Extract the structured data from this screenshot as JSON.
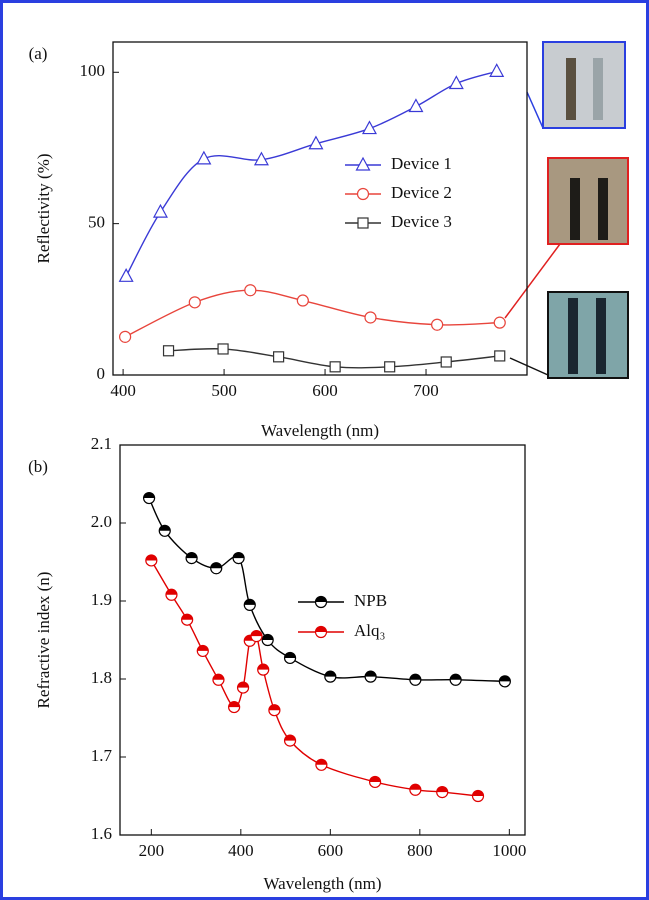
{
  "chart_data": [
    {
      "type": "line",
      "annotation": "(a)",
      "x_label": "Wavelength (nm)",
      "y_label": "Reflectivity (%)",
      "xlim": [
        390,
        800
      ],
      "xticks": [
        400,
        500,
        600,
        700
      ],
      "ylim": [
        0,
        110
      ],
      "yticks": [
        0,
        50,
        100
      ],
      "grid": false,
      "series": [
        {
          "name": "Device 1",
          "color": "#3a3ad6",
          "marker": "triangle",
          "x": [
            403,
            437,
            480,
            537,
            591,
            644,
            690,
            730,
            770
          ],
          "values": [
            32.6,
            53.8,
            71.4,
            71.1,
            76.4,
            81.4,
            88.7,
            96.3,
            100.3
          ]
        },
        {
          "name": "Device 2",
          "color": "#e8453c",
          "marker": "circle",
          "x": [
            402,
            471,
            526,
            578,
            645,
            711,
            773
          ],
          "values": [
            12.6,
            24,
            28,
            24.6,
            19,
            16.6,
            17.3
          ]
        },
        {
          "name": "Device 3",
          "color": "#333333",
          "marker": "square",
          "x": [
            445,
            499,
            554,
            610,
            664,
            720,
            773
          ],
          "values": [
            8,
            8.6,
            6,
            2.7,
            2.7,
            4.3,
            6.3
          ]
        }
      ]
    },
    {
      "type": "line",
      "annotation": "(b)",
      "x_label": "Wavelength (nm)",
      "y_label": "Refractive index (n)",
      "xlim": [
        130,
        1035
      ],
      "xticks": [
        200,
        400,
        600,
        800,
        1000
      ],
      "ylim": [
        1.6,
        2.1
      ],
      "yticks": [
        {
          "value": 1.6,
          "label": "1.6"
        },
        {
          "value": 1.7,
          "label": "1.7"
        },
        {
          "value": 1.8,
          "label": "1.8"
        },
        {
          "value": 1.9,
          "label": "1.9"
        },
        {
          "value": 2.0,
          "label": "2.0"
        },
        {
          "value": 2.1,
          "label": "2.1"
        }
      ],
      "grid": false,
      "series": [
        {
          "name": "NPB",
          "color": "#000000",
          "marker": "half-circle",
          "x": [
            195,
            230,
            290,
            345,
            395,
            420,
            460,
            510,
            600,
            690,
            790,
            880,
            990
          ],
          "values": [
            2.032,
            1.99,
            1.955,
            1.942,
            1.955,
            1.895,
            1.85,
            1.827,
            1.803,
            1.803,
            1.799,
            1.799,
            1.797
          ]
        },
        {
          "name": "Alq₃",
          "color": "#e00000",
          "marker": "half-circle",
          "x": [
            200,
            245,
            280,
            315,
            350,
            385,
            405,
            420,
            435,
            450,
            475,
            510,
            580,
            700,
            790,
            850,
            930
          ],
          "values": [
            1.952,
            1.908,
            1.876,
            1.836,
            1.799,
            1.764,
            1.789,
            1.849,
            1.855,
            1.812,
            1.76,
            1.721,
            1.69,
            1.668,
            1.658,
            1.655,
            1.65
          ]
        }
      ]
    }
  ]
}
